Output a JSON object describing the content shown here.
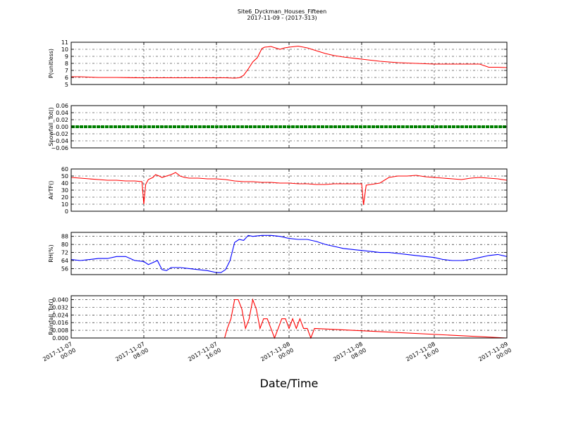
{
  "chart_data": {
    "type": "line",
    "title": "Site6_Dyckman_Houses_Fifteen",
    "subtitle": "2017-11-09 - (2017-313)",
    "xlabel": "Date/Time",
    "x_tick_labels": [
      [
        "2017-11-07",
        "00:00"
      ],
      [
        "2017-11-07",
        "08:00"
      ],
      [
        "2017-11-07",
        "16:00"
      ],
      [
        "2017-11-08",
        "00:00"
      ],
      [
        "2017-11-08",
        "08:00"
      ],
      [
        "2017-11-08",
        "16:00"
      ],
      [
        "2017-11-09",
        "00:00"
      ]
    ],
    "x_range_hours": [
      0,
      48
    ],
    "grid": true,
    "panels": [
      {
        "ylabel": "P(unitless)",
        "ylim": [
          5,
          11
        ],
        "yticks": [
          5,
          6,
          7,
          8,
          9,
          10,
          11
        ],
        "tick_labels": [
          "5",
          "6",
          "7",
          "8",
          "9",
          "10",
          "11"
        ],
        "color": "#ff0000",
        "series": [
          {
            "x": [
              0,
              1,
              2,
              3,
              4,
              5,
              6,
              7,
              8,
              9,
              10,
              11,
              12,
              13,
              14,
              15,
              16,
              17,
              18,
              18.5,
              19,
              19.5,
              20,
              20.5,
              21,
              21.3,
              21.7,
              22,
              23,
              23.5,
              24,
              25,
              26,
              27,
              28,
              29,
              30,
              31,
              32,
              33,
              34,
              35,
              36,
              37,
              38,
              39,
              40,
              41,
              42,
              43,
              44,
              45,
              46,
              47,
              48
            ],
            "y": [
              6.1,
              6.1,
              6.05,
              6.0,
              6.0,
              6.0,
              5.98,
              5.96,
              5.95,
              5.95,
              5.95,
              5.95,
              5.95,
              5.95,
              5.95,
              5.95,
              5.95,
              5.95,
              5.9,
              5.95,
              6.3,
              7.2,
              8.2,
              8.8,
              10.1,
              10.3,
              10.35,
              10.4,
              10.0,
              10.2,
              10.3,
              10.45,
              10.2,
              9.8,
              9.4,
              9.1,
              8.9,
              8.75,
              8.6,
              8.45,
              8.3,
              8.2,
              8.1,
              8.05,
              8.0,
              7.95,
              7.9,
              7.9,
              7.9,
              7.9,
              7.9,
              7.9,
              7.45,
              7.45,
              7.4
            ]
          }
        ]
      },
      {
        "ylabel": "Snowfall_Tot()",
        "ylim": [
          -0.06,
          0.06
        ],
        "yticks": [
          -0.06,
          -0.04,
          -0.02,
          0,
          0.02,
          0.04,
          0.06
        ],
        "tick_labels": [
          "−0.06",
          "−0.04",
          "−0.02",
          "0.00",
          "0.02",
          "0.04",
          "0.06"
        ],
        "color": "#008000",
        "series": [
          {
            "x": [
              0,
              48
            ],
            "y": [
              0,
              0
            ]
          }
        ]
      },
      {
        "ylabel": "AirTF()",
        "ylim": [
          0,
          60
        ],
        "yticks": [
          0,
          10,
          20,
          30,
          40,
          50,
          60
        ],
        "tick_labels": [
          "0",
          "10",
          "20",
          "30",
          "40",
          "50",
          "60"
        ],
        "color": "#ff0000",
        "series": [
          {
            "x": [
              0,
              1,
              2,
              3,
              4,
              5,
              6,
              7,
              7.8,
              8.0,
              8.2,
              8.5,
              9,
              9.3,
              9.7,
              10,
              11,
              11.5,
              12,
              12.5,
              13,
              14,
              15,
              16,
              17,
              18,
              19,
              20,
              21,
              22,
              23,
              24,
              25,
              26,
              27,
              28,
              29,
              30,
              31,
              32,
              32.2,
              32.5,
              33,
              34,
              35,
              36,
              37,
              38,
              39,
              40,
              41,
              42,
              43,
              44,
              45,
              46,
              47,
              48
            ],
            "y": [
              48,
              47,
              46,
              45,
              44,
              44,
              43,
              43,
              42,
              10,
              38,
              45,
              48,
              52,
              50,
              48,
              52,
              55,
              50,
              48,
              47,
              47,
              46,
              46,
              45,
              43,
              42,
              42,
              41,
              41,
              40,
              40,
              39,
              39,
              38,
              38,
              39,
              39,
              39,
              39,
              9,
              37,
              38,
              40,
              48,
              50,
              50,
              51,
              49,
              48,
              47,
              46,
              45,
              47,
              48,
              47,
              46,
              44
            ]
          }
        ]
      },
      {
        "ylabel": "RH(%)",
        "ylim": [
          50,
          92
        ],
        "yticks": [
          56,
          64,
          72,
          80,
          88
        ],
        "tick_labels": [
          "56",
          "64",
          "72",
          "80",
          "88"
        ],
        "color": "#0000ff",
        "series": [
          {
            "x": [
              0,
              1,
              2,
              3,
              4,
              5,
              6,
              7,
              8,
              8.5,
              9,
              9.5,
              10,
              10.5,
              11,
              12,
              13,
              14,
              15,
              16,
              16.5,
              17,
              17.5,
              18,
              18.5,
              19,
              19.5,
              20,
              21,
              22,
              23,
              24,
              25,
              26,
              27,
              28,
              29,
              30,
              31,
              32,
              33,
              34,
              35,
              36,
              37,
              38,
              39,
              40,
              41,
              42,
              43,
              44,
              45,
              46,
              47,
              48
            ],
            "y": [
              65,
              64,
              65,
              66,
              66,
              68,
              68,
              64,
              63,
              60,
              62,
              64,
              55,
              54,
              57,
              57,
              56,
              55,
              54,
              52,
              52,
              55,
              64,
              82,
              85,
              84,
              89,
              88,
              89,
              89,
              88,
              86,
              85,
              85,
              83,
              80,
              78,
              76,
              75,
              74,
              73,
              72,
              72,
              71,
              70,
              69,
              68,
              67,
              65,
              64,
              64,
              65,
              67,
              69,
              70,
              68
            ]
          }
        ]
      },
      {
        "ylabel": "Rainfall_Tot()",
        "ylim": [
          0,
          0.044
        ],
        "yticks": [
          0,
          0.008,
          0.016,
          0.024,
          0.032,
          0.04
        ],
        "tick_labels": [
          "0.000",
          "0.008",
          "0.016",
          "0.024",
          "0.032",
          "0.040"
        ],
        "color": "#ff0000",
        "series": [
          {
            "x": [
              0,
              16.9,
              17.2,
              17.6,
              18.0,
              18.4,
              18.8,
              19.2,
              19.6,
              20.0,
              20.4,
              20.8,
              21.2,
              21.6,
              22.0,
              22.4,
              22.8,
              23.2,
              23.6,
              24.0,
              24.4,
              24.8,
              25.2,
              25.6,
              26.0,
              26.4,
              26.8,
              48
            ],
            "y": [
              0,
              0,
              0.01,
              0.02,
              0.04,
              0.04,
              0.03,
              0.01,
              0.02,
              0.04,
              0.03,
              0.01,
              0.02,
              0.02,
              0.01,
              0.0,
              0.01,
              0.02,
              0.02,
              0.01,
              0.02,
              0.01,
              0.02,
              0.01,
              0.01,
              0.0,
              0.01,
              0
            ]
          }
        ]
      }
    ]
  }
}
